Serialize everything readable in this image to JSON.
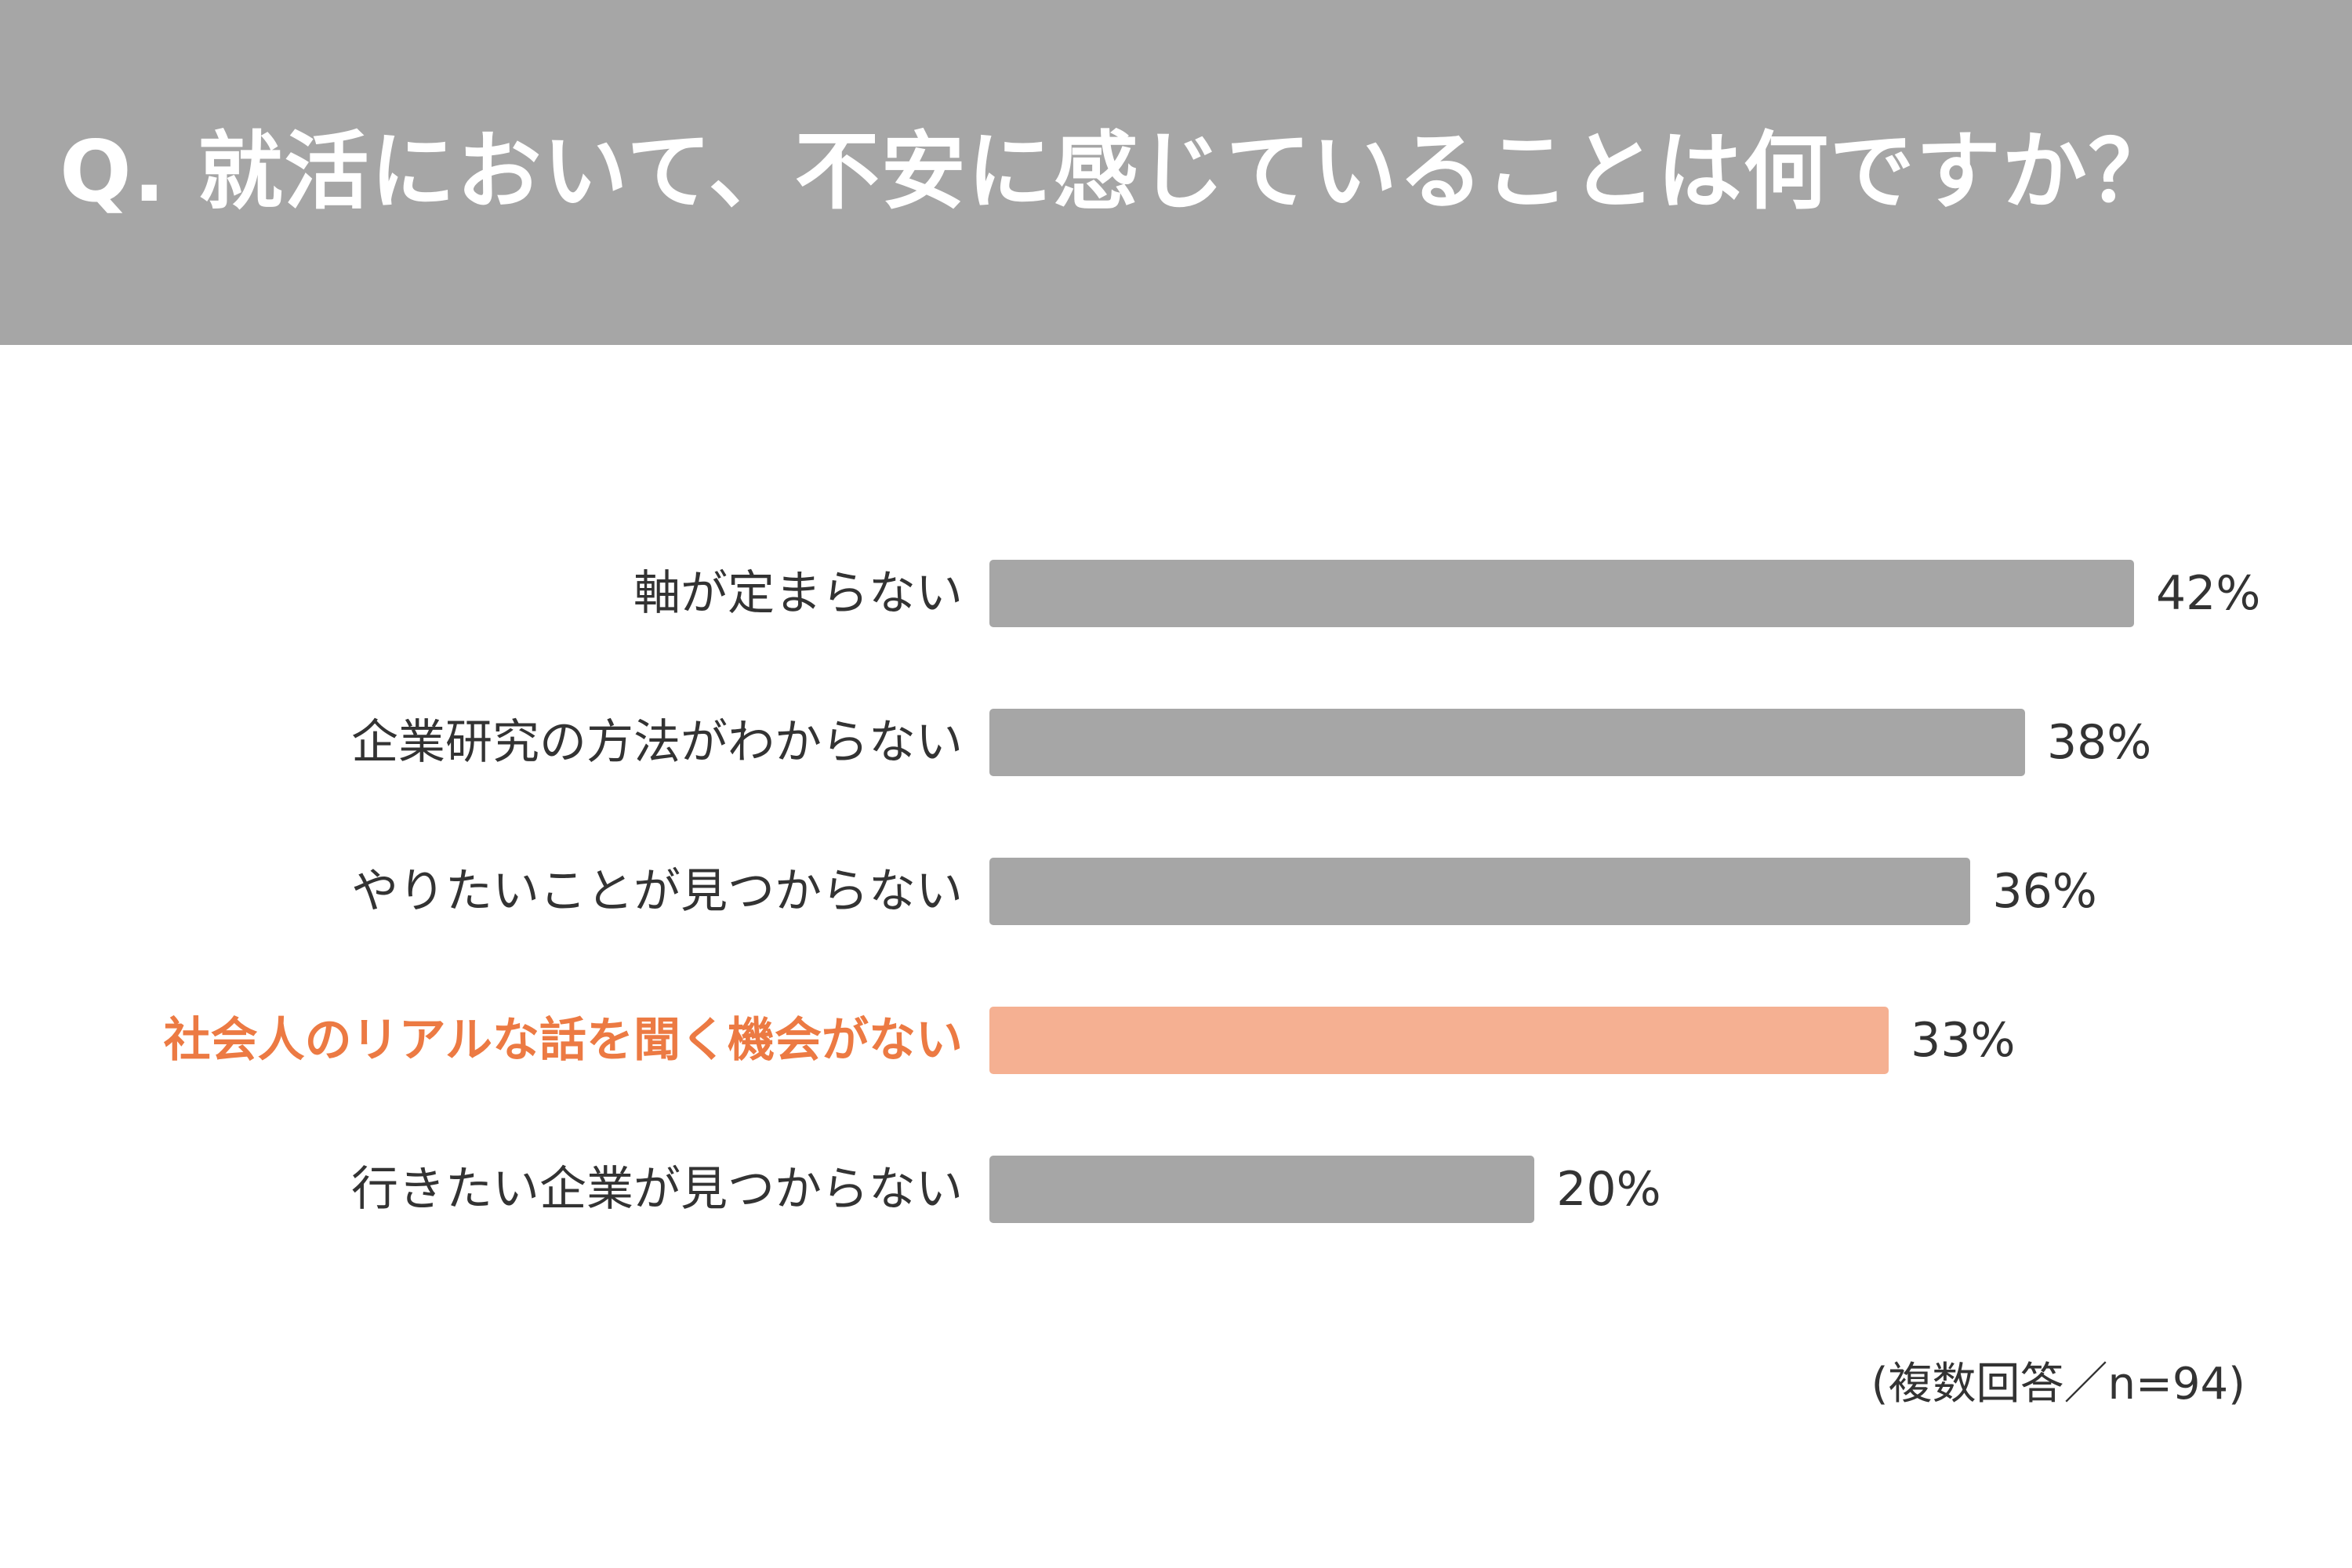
{
  "chart_data": {
    "type": "bar",
    "orientation": "horizontal",
    "title": "Q. 就活において、不安に感じていることは何ですか？",
    "categories": [
      "軸が定まらない",
      "企業研究の方法がわからない",
      "やりたいことが見つからない",
      "社会人のリアルな話を聞く機会がない",
      "行きたい企業が見つからない"
    ],
    "values": [
      42,
      38,
      36,
      33,
      20
    ],
    "value_labels": [
      "42%",
      "38%",
      "36%",
      "33%",
      "20%"
    ],
    "highlight_index": 3,
    "unit": "%",
    "note": "(複数回答／n=94)",
    "colors": {
      "header": "#a6a6a6",
      "bar": "#a6a6a6",
      "highlight_bar": "#f5b092",
      "highlight_text": "#ec7a43"
    }
  }
}
